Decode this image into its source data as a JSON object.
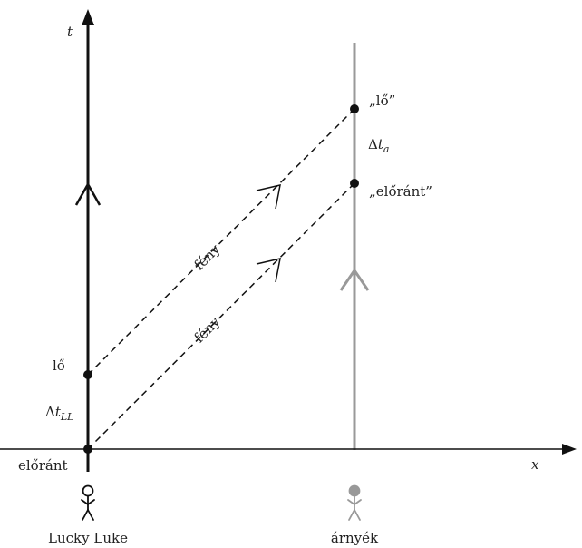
{
  "axes": {
    "time_label": "t",
    "space_label": "x"
  },
  "observers": {
    "left": {
      "name": "Lucky Luke",
      "event_draw_label": "előránt",
      "event_shoot_label": "lő",
      "interval_label": {
        "delta": "Δ",
        "var": "t",
        "sub": "LL"
      }
    },
    "right": {
      "name": "árnyék",
      "event_draw_label": "„előránt”",
      "event_shoot_label": "„lő”",
      "interval_label": {
        "delta": "Δ",
        "var": "t",
        "sub": "a"
      }
    }
  },
  "signals": {
    "upper_label": "fény",
    "lower_label": "fény"
  },
  "colors": {
    "left_worldline": "#111111",
    "right_worldline": "#999999",
    "axis": "#111111",
    "light_ray": "#111111"
  },
  "icons": {
    "left_figure": "stick-figure-hollow-icon",
    "right_figure": "stick-figure-filled-icon"
  }
}
